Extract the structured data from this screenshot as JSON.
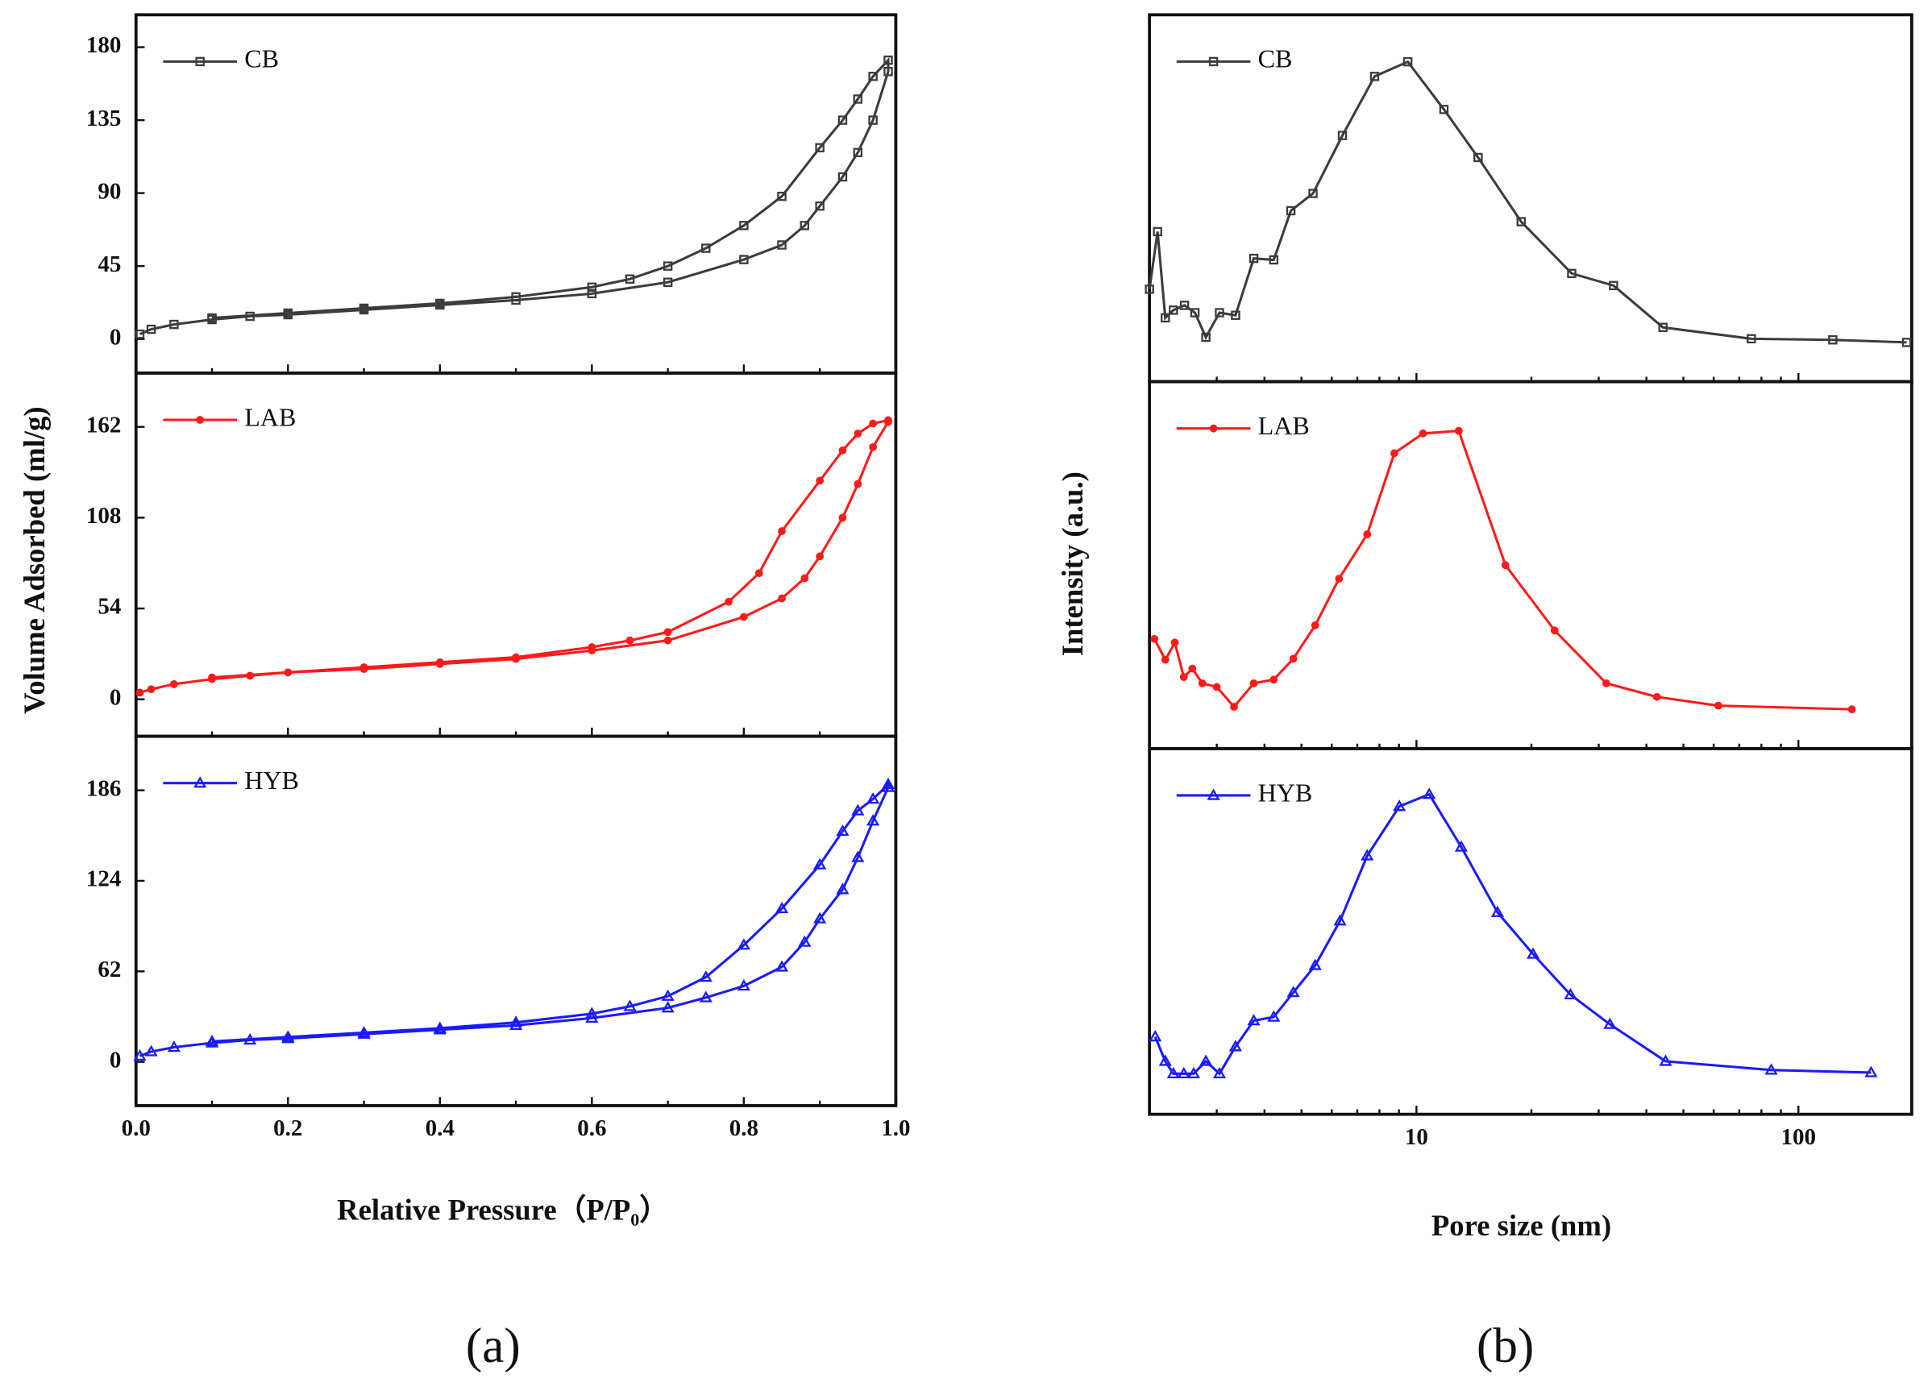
{
  "chart_data": [
    {
      "type": "line",
      "caption": "(a)",
      "xlabel": "Relative Pressure（P/P₀）",
      "ylabel": "Volume Adsorbed (ml/g)",
      "xlim": [
        0,
        1
      ],
      "xticks": [
        {
          "value": 0,
          "label": "0.0"
        },
        {
          "value": 0.2,
          "label": "0.2"
        },
        {
          "value": 0.4,
          "label": "0.4"
        },
        {
          "value": 0.6,
          "label": "0.6"
        },
        {
          "value": 0.8,
          "label": "0.8"
        },
        {
          "value": 1,
          "label": "1.0"
        }
      ],
      "panels": [
        {
          "ylim": [
            -21,
            200
          ],
          "yticks": [
            0,
            45,
            90,
            135,
            180
          ],
          "series": [
            {
              "name": "CB",
              "color": "#3c3c3c",
              "marker": "square",
              "x": [
                0.005,
                0.02,
                0.05,
                0.1,
                0.15,
                0.2,
                0.3,
                0.4,
                0.5,
                0.6,
                0.7,
                0.8,
                0.85,
                0.88,
                0.9,
                0.93,
                0.95,
                0.97,
                0.99,
                0.99,
                0.97,
                0.95,
                0.93,
                0.9,
                0.85,
                0.8,
                0.75,
                0.7,
                0.65,
                0.6,
                0.5,
                0.4,
                0.3,
                0.2,
                0.1
              ],
              "values": [
                3,
                6,
                9,
                12,
                14,
                15,
                18,
                21,
                24,
                28,
                35,
                49,
                58,
                70,
                82,
                100,
                115,
                135,
                165,
                172,
                162,
                148,
                135,
                118,
                88,
                70,
                56,
                45,
                37,
                32,
                26,
                22,
                19,
                16,
                13
              ]
            }
          ]
        },
        {
          "ylim": [
            -22,
            194
          ],
          "yticks": [
            0,
            54,
            108,
            162
          ],
          "series": [
            {
              "name": "LAB",
              "color": "#ff1a1a",
              "marker": "circle",
              "x": [
                0.005,
                0.02,
                0.05,
                0.1,
                0.15,
                0.2,
                0.3,
                0.4,
                0.5,
                0.6,
                0.7,
                0.8,
                0.85,
                0.88,
                0.9,
                0.93,
                0.95,
                0.97,
                0.99,
                0.99,
                0.97,
                0.95,
                0.93,
                0.9,
                0.85,
                0.82,
                0.78,
                0.7,
                0.65,
                0.6,
                0.5,
                0.4,
                0.3,
                0.2,
                0.1
              ],
              "values": [
                4,
                6,
                9,
                12,
                14,
                16,
                18,
                21,
                24,
                29,
                35,
                49,
                60,
                72,
                85,
                108,
                128,
                150,
                165,
                166,
                164,
                158,
                148,
                130,
                100,
                75,
                58,
                40,
                35,
                31,
                25,
                22,
                19,
                16,
                13
              ]
            }
          ]
        },
        {
          "ylim": [
            -30,
            223
          ],
          "yticks": [
            0,
            62,
            124,
            186
          ],
          "series": [
            {
              "name": "HYB",
              "color": "#1a1aff",
              "marker": "triangle",
              "x": [
                0.005,
                0.02,
                0.05,
                0.1,
                0.15,
                0.2,
                0.3,
                0.4,
                0.5,
                0.6,
                0.7,
                0.75,
                0.8,
                0.85,
                0.88,
                0.9,
                0.93,
                0.95,
                0.97,
                0.99,
                0.99,
                0.97,
                0.95,
                0.93,
                0.9,
                0.85,
                0.8,
                0.75,
                0.7,
                0.65,
                0.6,
                0.5,
                0.4,
                0.3,
                0.2,
                0.1
              ],
              "values": [
                4,
                7,
                10,
                13,
                15,
                16,
                19,
                22,
                25,
                30,
                37,
                44,
                52,
                65,
                82,
                98,
                118,
                140,
                165,
                188,
                190,
                180,
                172,
                158,
                135,
                105,
                80,
                58,
                45,
                38,
                33,
                27,
                23,
                20,
                17,
                14
              ]
            }
          ]
        }
      ]
    },
    {
      "type": "line",
      "caption": "(b)",
      "xlabel": "Pore size (nm)",
      "ylabel": "Intensity (a.u.)",
      "xscale": "log",
      "xlim": [
        2,
        198
      ],
      "xticks": [
        10,
        100
      ],
      "panels": [
        {
          "ylim": [
            0,
            100
          ],
          "series": [
            {
              "name": "CB",
              "color": "#3c3c3c",
              "marker": "square",
              "x": [
                2.0,
                2.1,
                2.2,
                2.31,
                2.47,
                2.63,
                2.81,
                3.05,
                3.36,
                3.75,
                4.23,
                4.69,
                5.36,
                6.4,
                7.77,
                9.49,
                11.8,
                14.5,
                18.8,
                25.5,
                32.8,
                44.2,
                75.3,
                123,
                192
              ],
              "values": [
                25.2,
                40.9,
                17.4,
                19.5,
                20.8,
                18.8,
                12.1,
                18.8,
                18.1,
                33.6,
                33.2,
                46.6,
                51.3,
                67.1,
                83.2,
                87.2,
                74.2,
                61.1,
                43.6,
                29.5,
                26.2,
                14.8,
                11.7,
                11.4,
                10.7
              ]
            }
          ]
        },
        {
          "ylim": [
            0,
            100
          ],
          "series": [
            {
              "name": "LAB",
              "color": "#ff1a1a",
              "marker": "circle",
              "x": [
                2.06,
                2.2,
                2.33,
                2.46,
                2.59,
                2.75,
                3.0,
                3.33,
                3.75,
                4.23,
                4.76,
                5.43,
                6.27,
                7.43,
                8.75,
                10.4,
                12.9,
                17.1,
                23.0,
                31.4,
                42.6,
                61.7,
                138
              ],
              "values": [
                29.9,
                24.2,
                28.9,
                19.5,
                21.8,
                17.8,
                16.8,
                11.4,
                17.8,
                18.8,
                24.5,
                33.6,
                46.3,
                58.4,
                80.5,
                85.9,
                86.6,
                50.0,
                32.2,
                17.8,
                14.1,
                11.7,
                10.7
              ]
            }
          ]
        },
        {
          "ylim": [
            0,
            100
          ],
          "series": [
            {
              "name": "HYB",
              "color": "#1a1aff",
              "marker": "triangle",
              "x": [
                2.07,
                2.2,
                2.31,
                2.46,
                2.61,
                2.81,
                3.05,
                3.36,
                3.75,
                4.23,
                4.76,
                5.43,
                6.31,
                7.43,
                9.02,
                10.8,
                13.1,
                16.3,
                20.2,
                25.3,
                32.1,
                44.9,
                84.9,
                155
              ],
              "values": [
                21.2,
                14.5,
                11.1,
                11.1,
                11.1,
                14.5,
                11.1,
                18.5,
                25.6,
                26.6,
                33.3,
                40.7,
                52.9,
                70.7,
                84.2,
                87.5,
                73.1,
                55.2,
                43.8,
                32.7,
                24.6,
                14.5,
                12.1,
                11.4
              ]
            }
          ]
        }
      ]
    }
  ]
}
